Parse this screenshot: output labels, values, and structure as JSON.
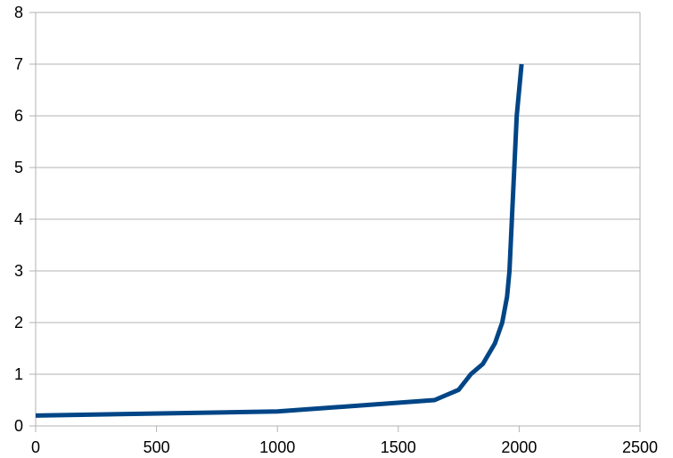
{
  "chart_data": {
    "type": "line",
    "title": "",
    "xlabel": "",
    "ylabel": "",
    "xlim": [
      0,
      2500
    ],
    "ylim": [
      0,
      8
    ],
    "x_ticks": [
      0,
      500,
      1000,
      1500,
      2000,
      2500
    ],
    "y_ticks": [
      0,
      1,
      2,
      3,
      4,
      5,
      6,
      7,
      8
    ],
    "x_tick_labels": [
      "0",
      "500",
      "1000",
      "1500",
      "2000",
      "2500"
    ],
    "y_tick_labels": [
      "0",
      "1",
      "2",
      "3",
      "4",
      "5",
      "6",
      "7",
      "8"
    ],
    "grid": "horizontal",
    "legend": "none",
    "series": [
      {
        "color": "#004586",
        "x": [
          0,
          1000,
          1650,
          1750,
          1800,
          1850,
          1900,
          1930,
          1950,
          1960,
          1970,
          1980,
          1990,
          2000,
          2010
        ],
        "y": [
          0.2,
          0.28,
          0.5,
          0.7,
          1.0,
          1.2,
          1.6,
          2.0,
          2.5,
          3.0,
          4.0,
          5.0,
          6.0,
          6.5,
          7.0
        ]
      }
    ]
  }
}
